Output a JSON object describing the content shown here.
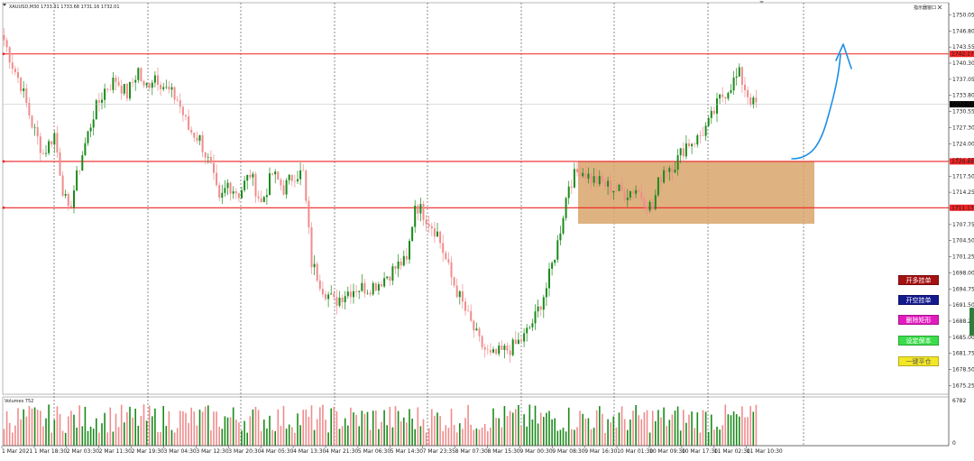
{
  "window": {
    "header": "XAUUSD,M30  1733.31 1733.68 1731.16 1732.01",
    "top_right": "指示器窗口",
    "volume_label": "Volumes 752"
  },
  "panel_buttons": [
    {
      "label": "开多挂单",
      "bg": "#a31111",
      "fg": "#ffffff"
    },
    {
      "label": "开空挂单",
      "bg": "#141a8c",
      "fg": "#ffffff"
    },
    {
      "label": "删除矩形",
      "bg": "#e21bbf",
      "fg": "#ffffff"
    },
    {
      "label": "设定保本",
      "bg": "#3bdc4a",
      "fg": "#ffffff"
    },
    {
      "label": "一键平仓",
      "bg": "#f3e626",
      "fg": "#555555"
    }
  ],
  "colors": {
    "bull": "#1b8a1b",
    "bear": "#f08c8c",
    "level_line": "#ee2222",
    "zone_fill": "#d9a56b",
    "arrow": "#1e8fe6",
    "grid": "#444444",
    "current_price_label_bg": "#000000",
    "level_label_bg": "#ee2222"
  },
  "chart_data": {
    "type": "candlestick",
    "symbol": "XAUUSD",
    "timeframe": "M30",
    "ylim": [
      1673.5,
      1752.5
    ],
    "y_ticks": [
      "1750.05",
      "1746.80",
      "1743.55",
      "1740.30",
      "1737.05",
      "1733.80",
      "1730.55",
      "1727.30",
      "1724.00",
      "1720.75",
      "1717.50",
      "1714.25",
      "1711.00",
      "1707.75",
      "1704.50",
      "1701.25",
      "1698.00",
      "1694.75",
      "1691.50",
      "1688.25",
      "1685.00",
      "1681.75",
      "1678.50",
      "1675.25"
    ],
    "x_ticks": [
      "1 Mar 2021",
      "1 Mar 18:30",
      "2 Mar 03:30",
      "2 Mar 11:30",
      "2 Mar 19:30",
      "3 Mar 04:30",
      "3 Mar 12:30",
      "3 Mar 20:30",
      "4 Mar 05:30",
      "4 Mar 13:30",
      "4 Mar 21:30",
      "5 Mar 06:30",
      "5 Mar 14:30",
      "7 Mar 23:35",
      "8 Mar 07:30",
      "8 Mar 15:30",
      "9 Mar 00:30",
      "9 Mar 08:30",
      "9 Mar 16:30",
      "10 Mar 01:30",
      "10 Mar 09:30",
      "10 Mar 17:30",
      "11 Mar 02:30",
      "11 Mar 10:30"
    ],
    "last_price": "1732.01",
    "levels": [
      {
        "price": 1742.17,
        "label": "1742.17"
      },
      {
        "price": 1720.48,
        "label": "1720.48"
      },
      {
        "price": 1711.13,
        "label": "1711.13"
      }
    ],
    "zone": {
      "from": 1707.9,
      "to": 1720.48
    },
    "volume_axis": [
      "6782",
      "0"
    ],
    "anchors": [
      [
        0,
        1745
      ],
      [
        3,
        1740
      ],
      [
        6,
        1736
      ],
      [
        10,
        1728
      ],
      [
        14,
        1722
      ],
      [
        18,
        1726
      ],
      [
        21,
        1715
      ],
      [
        23,
        1710
      ],
      [
        28,
        1722
      ],
      [
        32,
        1730
      ],
      [
        36,
        1735
      ],
      [
        40,
        1737
      ],
      [
        44,
        1734
      ],
      [
        48,
        1739
      ],
      [
        50,
        1735
      ],
      [
        54,
        1738
      ],
      [
        58,
        1735
      ],
      [
        62,
        1733
      ],
      [
        66,
        1727
      ],
      [
        70,
        1725
      ],
      [
        74,
        1719
      ],
      [
        77,
        1712
      ],
      [
        80,
        1716
      ],
      [
        84,
        1714
      ],
      [
        88,
        1718
      ],
      [
        92,
        1712
      ],
      [
        96,
        1718
      ],
      [
        100,
        1715
      ],
      [
        104,
        1718
      ],
      [
        107,
        1718
      ],
      [
        110,
        1700
      ],
      [
        114,
        1695
      ],
      [
        118,
        1692
      ],
      [
        122,
        1694
      ],
      [
        126,
        1695
      ],
      [
        130,
        1695
      ],
      [
        134,
        1696
      ],
      [
        138,
        1698
      ],
      [
        142,
        1700
      ],
      [
        144,
        1700
      ],
      [
        147,
        1712
      ],
      [
        150,
        1710
      ],
      [
        155,
        1706
      ],
      [
        160,
        1697
      ],
      [
        166,
        1689
      ],
      [
        170,
        1684
      ],
      [
        174,
        1681
      ],
      [
        178,
        1682
      ],
      [
        182,
        1683
      ],
      [
        186,
        1685
      ],
      [
        190,
        1689
      ],
      [
        194,
        1695
      ],
      [
        198,
        1704
      ],
      [
        200,
        1710
      ],
      [
        202,
        1716
      ],
      [
        206,
        1719
      ],
      [
        210,
        1717
      ],
      [
        214,
        1716
      ],
      [
        218,
        1715
      ],
      [
        222,
        1714
      ],
      [
        226,
        1715
      ],
      [
        230,
        1712
      ],
      [
        232,
        1711
      ],
      [
        234,
        1716
      ],
      [
        236,
        1719
      ],
      [
        240,
        1720
      ],
      [
        244,
        1724
      ],
      [
        248,
        1725
      ],
      [
        252,
        1728
      ],
      [
        256,
        1733
      ],
      [
        260,
        1736
      ],
      [
        263,
        1738
      ],
      [
        266,
        1734
      ],
      [
        268,
        1732
      ]
    ]
  }
}
